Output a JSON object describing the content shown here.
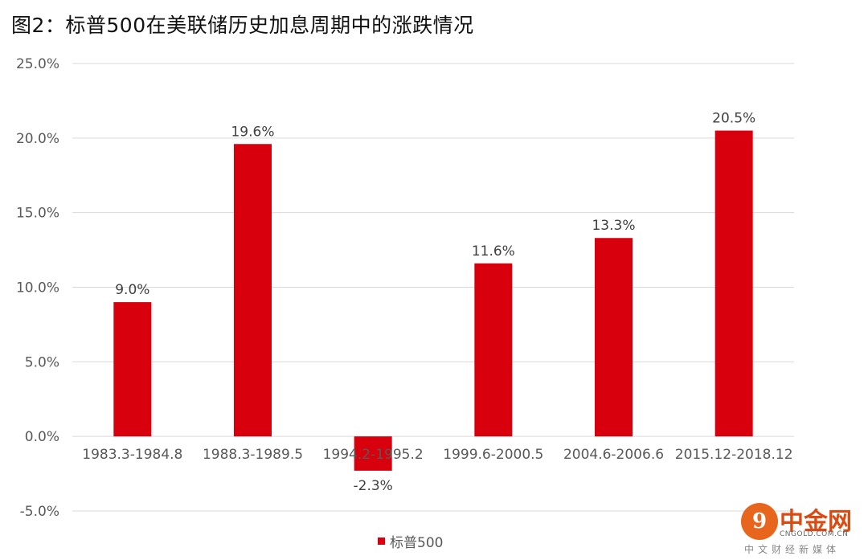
{
  "title": "图2：标普500在美联储历史加息周期中的涨跌情况",
  "chart_data": {
    "type": "bar",
    "categories": [
      "1983.3-1984.8",
      "1988.3-1989.5",
      "1994.2-1995.2",
      "1999.6-2000.5",
      "2004.6-2006.6",
      "2015.12-2018.12"
    ],
    "series": [
      {
        "name": "标普500",
        "values": [
          9.0,
          19.6,
          -2.3,
          11.6,
          13.3,
          20.5
        ],
        "color": "#d9000d"
      }
    ],
    "data_labels": [
      "9.0%",
      "19.6%",
      "-2.3%",
      "11.6%",
      "13.3%",
      "20.5%"
    ],
    "ylim": [
      -5.0,
      25.0
    ],
    "yticks": [
      -5.0,
      0.0,
      5.0,
      10.0,
      15.0,
      20.0,
      25.0
    ],
    "ytick_labels": [
      "-5.0%",
      "0.0%",
      "5.0%",
      "10.0%",
      "15.0%",
      "20.0%",
      "25.0%"
    ],
    "grid": true,
    "legend_position": "bottom"
  },
  "legend": {
    "label": "标普500",
    "color": "#d9000d"
  },
  "watermark": {
    "logo_glyph": "9",
    "name": "中金网",
    "url": "CNGOLD.COM.CN",
    "tagline": "中文财经新媒体"
  }
}
